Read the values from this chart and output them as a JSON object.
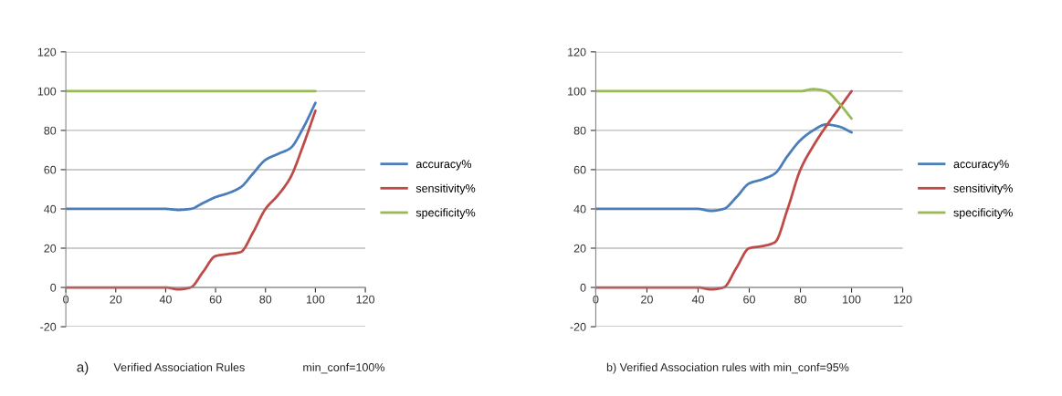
{
  "chart_data": [
    {
      "type": "line",
      "x": [
        0,
        5,
        10,
        15,
        20,
        25,
        30,
        35,
        40,
        45,
        50,
        55,
        60,
        65,
        70,
        75,
        80,
        85,
        90,
        95,
        100
      ],
      "xlim": [
        0,
        120
      ],
      "xticks": [
        0,
        20,
        40,
        60,
        80,
        100,
        120
      ],
      "ylim": [
        -20,
        120
      ],
      "yticks": [
        {
          "value": -20,
          "label": "-20"
        },
        0,
        20,
        40,
        60,
        80,
        100,
        120
      ],
      "grid": "y",
      "legend": "right",
      "marker": "none",
      "line_style": "solid",
      "series": [
        {
          "name": "accuracy%",
          "color": "#4a7ebb",
          "values": [
            40,
            40,
            40,
            40,
            40,
            40,
            40,
            40,
            40,
            39.5,
            40,
            43,
            46,
            48,
            51,
            58,
            65,
            68,
            71,
            81,
            94
          ]
        },
        {
          "name": "sensitivity%",
          "color": "#be4b48",
          "values": [
            0,
            0,
            0,
            0,
            0,
            0,
            0,
            0,
            0,
            -1,
            0,
            8,
            16,
            17,
            18,
            28,
            40,
            47,
            56,
            72,
            90
          ]
        },
        {
          "name": "specificity%",
          "color": "#98b954",
          "values": [
            100,
            100,
            100,
            100,
            100,
            100,
            100,
            100,
            100,
            100,
            100,
            100,
            100,
            100,
            100,
            100,
            100,
            100,
            100,
            100,
            100
          ]
        }
      ],
      "annotations": [
        "a)",
        "Verified Association Rules",
        "min_conf=100%"
      ]
    },
    {
      "type": "line",
      "x": [
        0,
        5,
        10,
        15,
        20,
        25,
        30,
        35,
        40,
        45,
        50,
        55,
        60,
        65,
        70,
        75,
        80,
        85,
        90,
        95,
        100
      ],
      "xlim": [
        0,
        120
      ],
      "xticks": [
        0,
        20,
        40,
        60,
        80,
        100,
        120
      ],
      "ylim": [
        -20,
        120
      ],
      "yticks": [
        {
          "value": -20,
          "label": "-20"
        },
        0,
        20,
        40,
        60,
        80,
        100,
        120
      ],
      "grid": "y",
      "legend": "right",
      "marker": "none",
      "line_style": "solid",
      "series": [
        {
          "name": "accuracy%",
          "color": "#4a7ebb",
          "values": [
            40,
            40,
            40,
            40,
            40,
            40,
            40,
            40,
            40,
            39,
            40,
            46,
            53,
            55,
            58,
            67,
            75,
            80,
            83,
            82,
            79
          ]
        },
        {
          "name": "sensitivity%",
          "color": "#be4b48",
          "values": [
            0,
            0,
            0,
            0,
            0,
            0,
            0,
            0,
            0,
            -1,
            0,
            10,
            20,
            21,
            23,
            40,
            60,
            72,
            82,
            91,
            100
          ]
        },
        {
          "name": "specificity%",
          "color": "#98b954",
          "values": [
            100,
            100,
            100,
            100,
            100,
            100,
            100,
            100,
            100,
            100,
            100,
            100,
            100,
            100,
            100,
            100,
            100,
            101,
            100,
            94,
            86
          ]
        }
      ],
      "annotations": [
        "b) Verified Association rules with min_conf=95%"
      ]
    }
  ]
}
